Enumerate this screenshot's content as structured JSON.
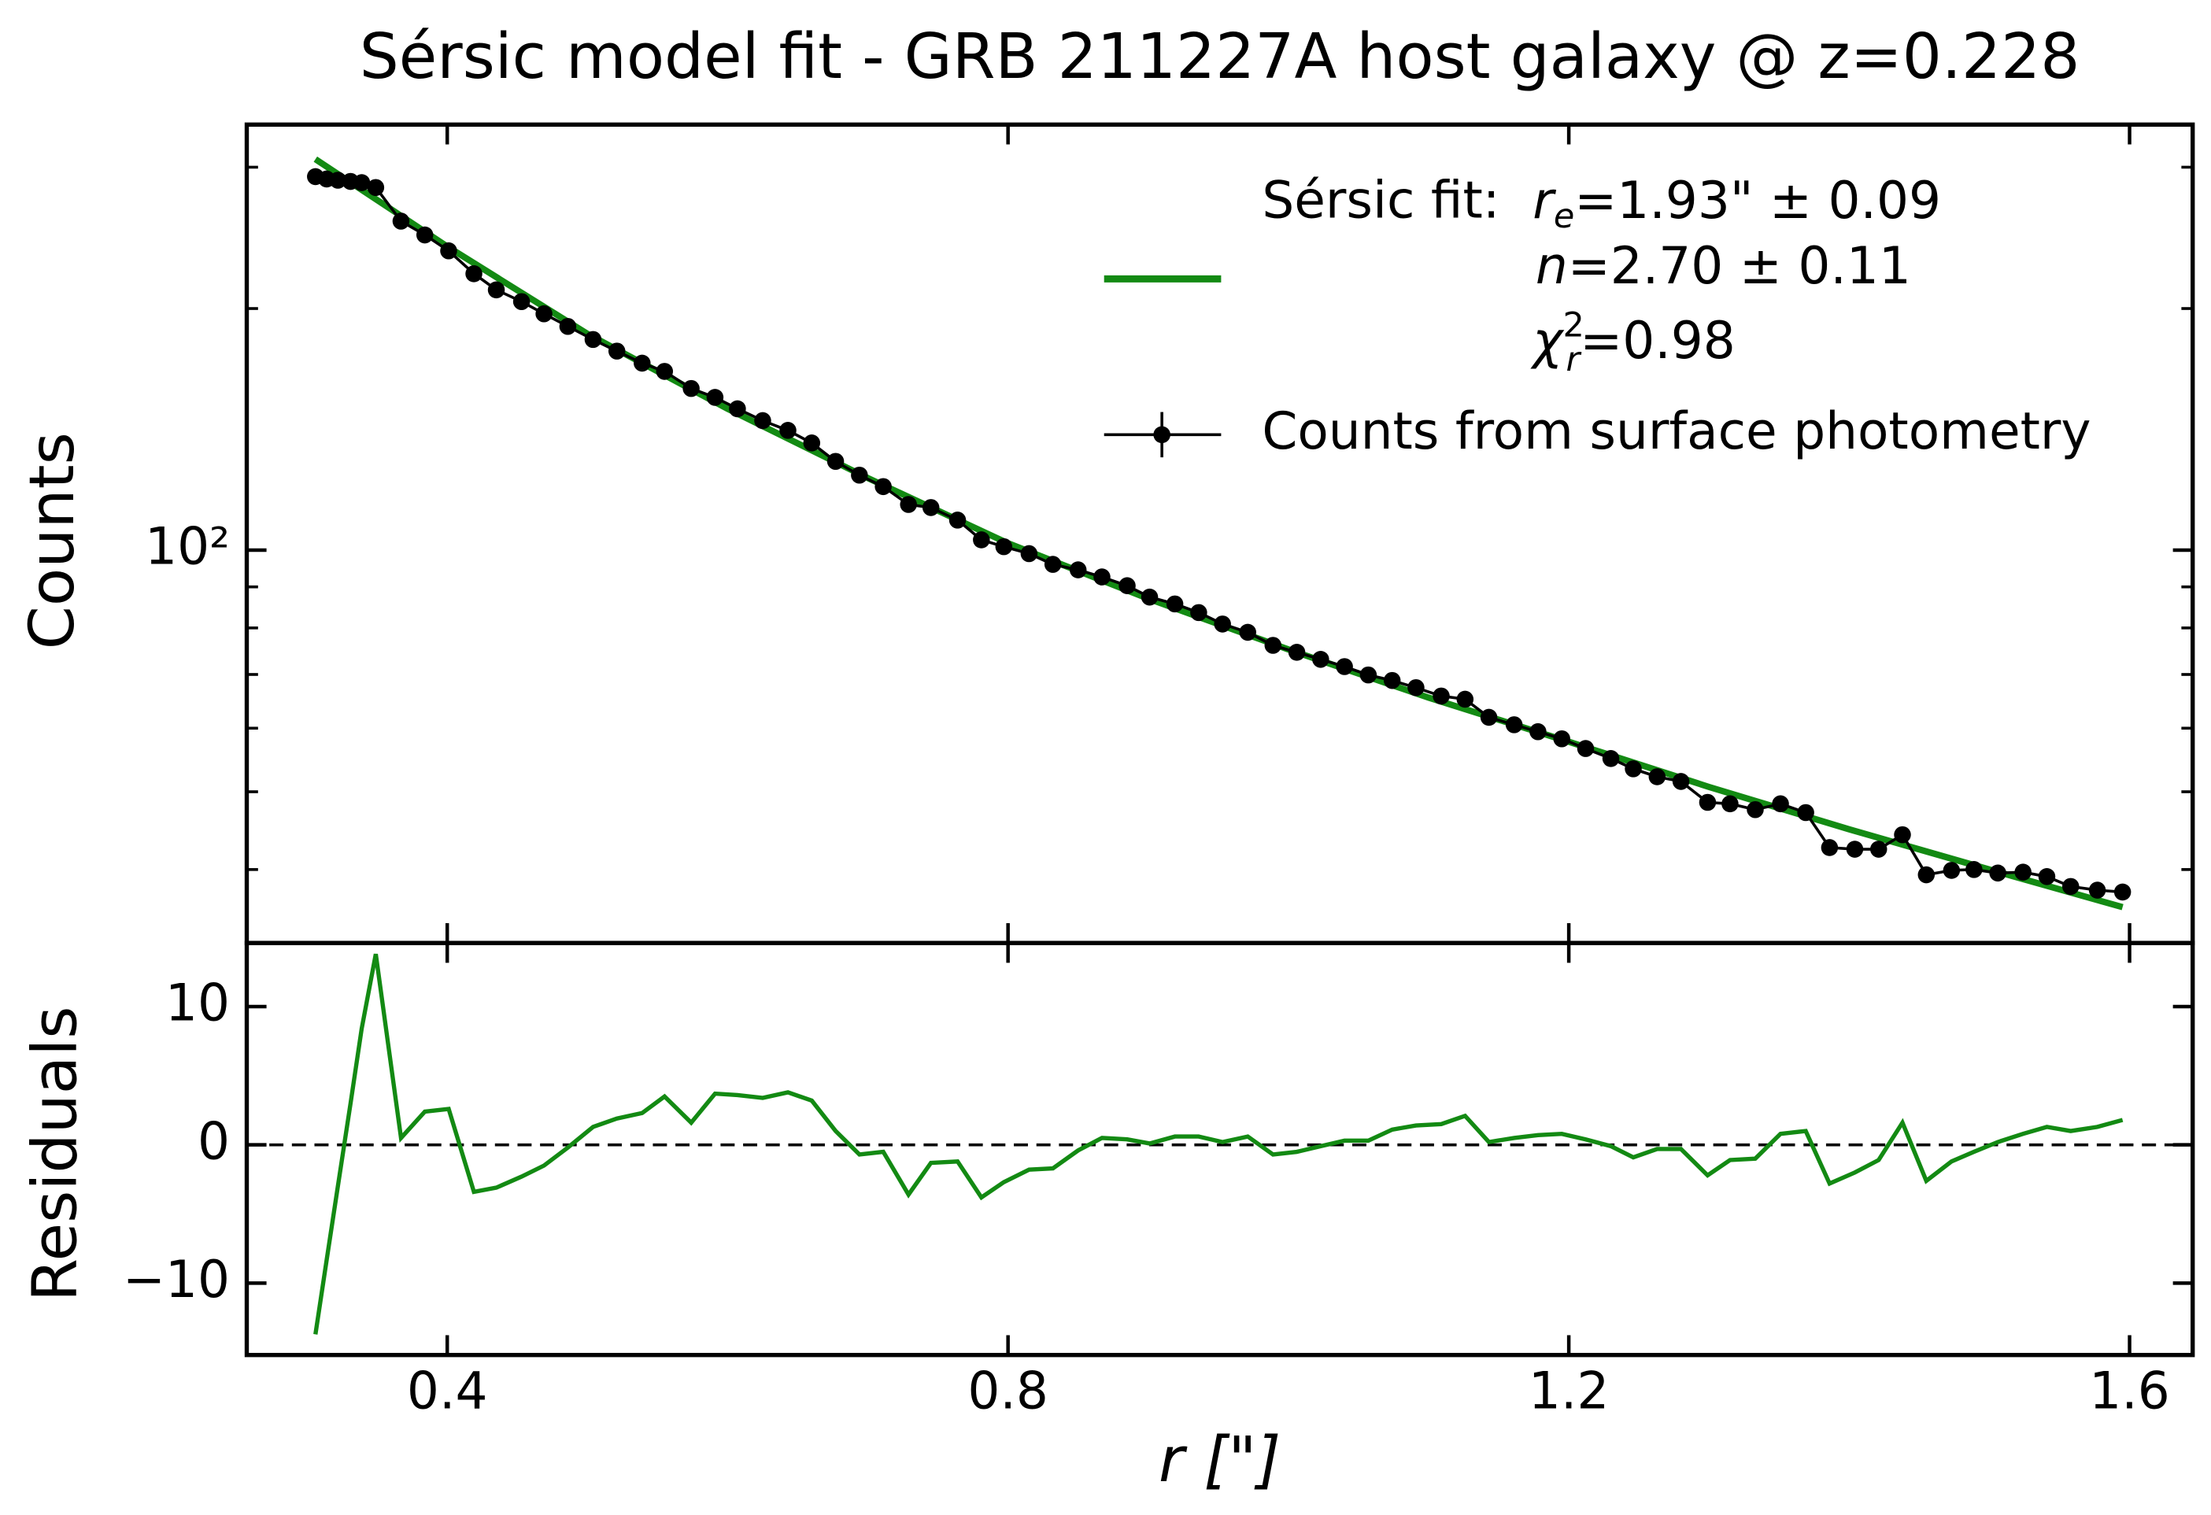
{
  "chart_data": [
    {
      "type": "line",
      "title": "Sérsic model fit - GRB 211227A host galaxy @ z=0.228",
      "ylabel": "Counts",
      "log_y": true,
      "xlim": [
        0.257,
        1.645
      ],
      "xticks": [
        0.4,
        0.8,
        1.2,
        1.6
      ],
      "ylim": [
        32.4,
        339
      ],
      "yticks": [
        {
          "value": 100,
          "label": "10²"
        }
      ],
      "minor_yticks": [
        40,
        50,
        60,
        70,
        80,
        90,
        200,
        300
      ],
      "legend": "upper right",
      "legend_annotation": [
        {
          "symbol": "r",
          "sub": "e",
          "text": "=1.93\" ± 0.09"
        },
        {
          "symbol": "n",
          "text": "=2.70 ± 0.11"
        },
        {
          "symbol": "χ",
          "sup": "2",
          "sub": "r",
          "text": "=0.98"
        }
      ],
      "series": [
        {
          "name": "Sérsic fit:",
          "color": "#138a13",
          "style": "line",
          "x": [
            0.306,
            0.4,
            0.5,
            0.6,
            0.7,
            0.8,
            0.9,
            1.0,
            1.1,
            1.2,
            1.3,
            1.4,
            1.5,
            1.595
          ],
          "values": [
            307,
            239,
            186,
            150,
            123,
            102,
            87,
            75.2,
            65.5,
            57.7,
            50.7,
            44.9,
            40.0,
            35.9
          ]
        },
        {
          "name": "Counts from surface photometry",
          "color": "#000000",
          "style": "marker-line",
          "x": [
            0.306,
            0.314,
            0.322,
            0.331,
            0.339,
            0.349,
            0.367,
            0.384,
            0.401,
            0.419,
            0.435,
            0.453,
            0.469,
            0.486,
            0.504,
            0.521,
            0.539,
            0.555,
            0.574,
            0.591,
            0.607,
            0.625,
            0.643,
            0.66,
            0.677,
            0.694,
            0.711,
            0.729,
            0.745,
            0.764,
            0.781,
            0.797,
            0.815,
            0.832,
            0.85,
            0.867,
            0.885,
            0.901,
            0.919,
            0.936,
            0.953,
            0.971,
            0.989,
            1.006,
            1.023,
            1.04,
            1.057,
            1.074,
            1.091,
            1.109,
            1.126,
            1.143,
            1.161,
            1.178,
            1.195,
            1.212,
            1.23,
            1.246,
            1.263,
            1.28,
            1.299,
            1.315,
            1.333,
            1.351,
            1.369,
            1.386,
            1.404,
            1.421,
            1.438,
            1.455,
            1.473,
            1.489,
            1.506,
            1.524,
            1.541,
            1.558,
            1.577,
            1.595
          ],
          "values": [
            292,
            290,
            289,
            288,
            287,
            283,
            257,
            247,
            236,
            221,
            211,
            204,
            197,
            190,
            183,
            177,
            171,
            167,
            159,
            155,
            150,
            145,
            141,
            136,
            129,
            124,
            120,
            114,
            113,
            109,
            103,
            101,
            99,
            96,
            94.5,
            92.6,
            90.3,
            87.4,
            85.7,
            83.6,
            80.9,
            79.0,
            76.1,
            74.6,
            73.1,
            71.6,
            69.9,
            68.8,
            67.4,
            65.8,
            65.2,
            61.9,
            60.6,
            59.4,
            58.2,
            56.6,
            55.0,
            53.4,
            52.2,
            51.5,
            48.5,
            48.3,
            47.5,
            48.3,
            47.1,
            42.6,
            42.4,
            42.4,
            44.2,
            39.4,
            39.9,
            40.0,
            39.6,
            39.7,
            39.2,
            38.1,
            37.7,
            37.5
          ]
        }
      ]
    },
    {
      "type": "line",
      "xlabel": "r [\"]",
      "ylabel": "Residuals",
      "xlim": [
        0.257,
        1.645
      ],
      "xticks": [
        0.4,
        0.8,
        1.2,
        1.6
      ],
      "ylim": [
        -15.2,
        14.6
      ],
      "yticks": [
        {
          "value": -10,
          "label": "−10"
        },
        0,
        10
      ],
      "reference_line": 0,
      "series": [
        {
          "name": null,
          "color": "#138a13",
          "x": [
            0.306,
            0.314,
            0.322,
            0.331,
            0.339,
            0.349,
            0.367,
            0.384,
            0.401,
            0.419,
            0.435,
            0.453,
            0.469,
            0.486,
            0.504,
            0.521,
            0.539,
            0.555,
            0.574,
            0.591,
            0.607,
            0.625,
            0.643,
            0.66,
            0.677,
            0.694,
            0.711,
            0.729,
            0.745,
            0.764,
            0.781,
            0.797,
            0.815,
            0.832,
            0.85,
            0.867,
            0.885,
            0.901,
            0.919,
            0.936,
            0.953,
            0.971,
            0.989,
            1.006,
            1.023,
            1.04,
            1.057,
            1.074,
            1.091,
            1.109,
            1.126,
            1.143,
            1.161,
            1.178,
            1.195,
            1.212,
            1.23,
            1.246,
            1.263,
            1.28,
            1.299,
            1.315,
            1.333,
            1.351,
            1.369,
            1.386,
            1.404,
            1.421,
            1.438,
            1.455,
            1.473,
            1.489,
            1.506,
            1.524,
            1.541,
            1.558,
            1.577,
            1.595
          ],
          "values": [
            -13.7,
            -8.3,
            -3.0,
            3.0,
            8.4,
            13.8,
            0.5,
            2.4,
            2.6,
            -3.4,
            -3.1,
            -2.3,
            -1.5,
            -0.2,
            1.3,
            1.9,
            2.3,
            3.5,
            1.6,
            3.7,
            3.6,
            3.4,
            3.8,
            3.2,
            1.0,
            -0.7,
            -0.5,
            -3.6,
            -1.3,
            -1.2,
            -3.8,
            -2.7,
            -1.8,
            -1.7,
            -0.4,
            0.5,
            0.4,
            0.1,
            0.6,
            0.6,
            0.2,
            0.6,
            -0.7,
            -0.5,
            -0.1,
            0.3,
            0.3,
            1.1,
            1.4,
            1.5,
            2.1,
            0.2,
            0.5,
            0.7,
            0.8,
            0.4,
            -0.1,
            -0.9,
            -0.3,
            -0.3,
            -2.2,
            -1.1,
            -1.0,
            0.8,
            1.0,
            -2.8,
            -2.0,
            -1.1,
            1.6,
            -2.6,
            -1.2,
            -0.5,
            0.2,
            0.8,
            1.3,
            1.0,
            1.3,
            1.8
          ]
        }
      ]
    }
  ]
}
